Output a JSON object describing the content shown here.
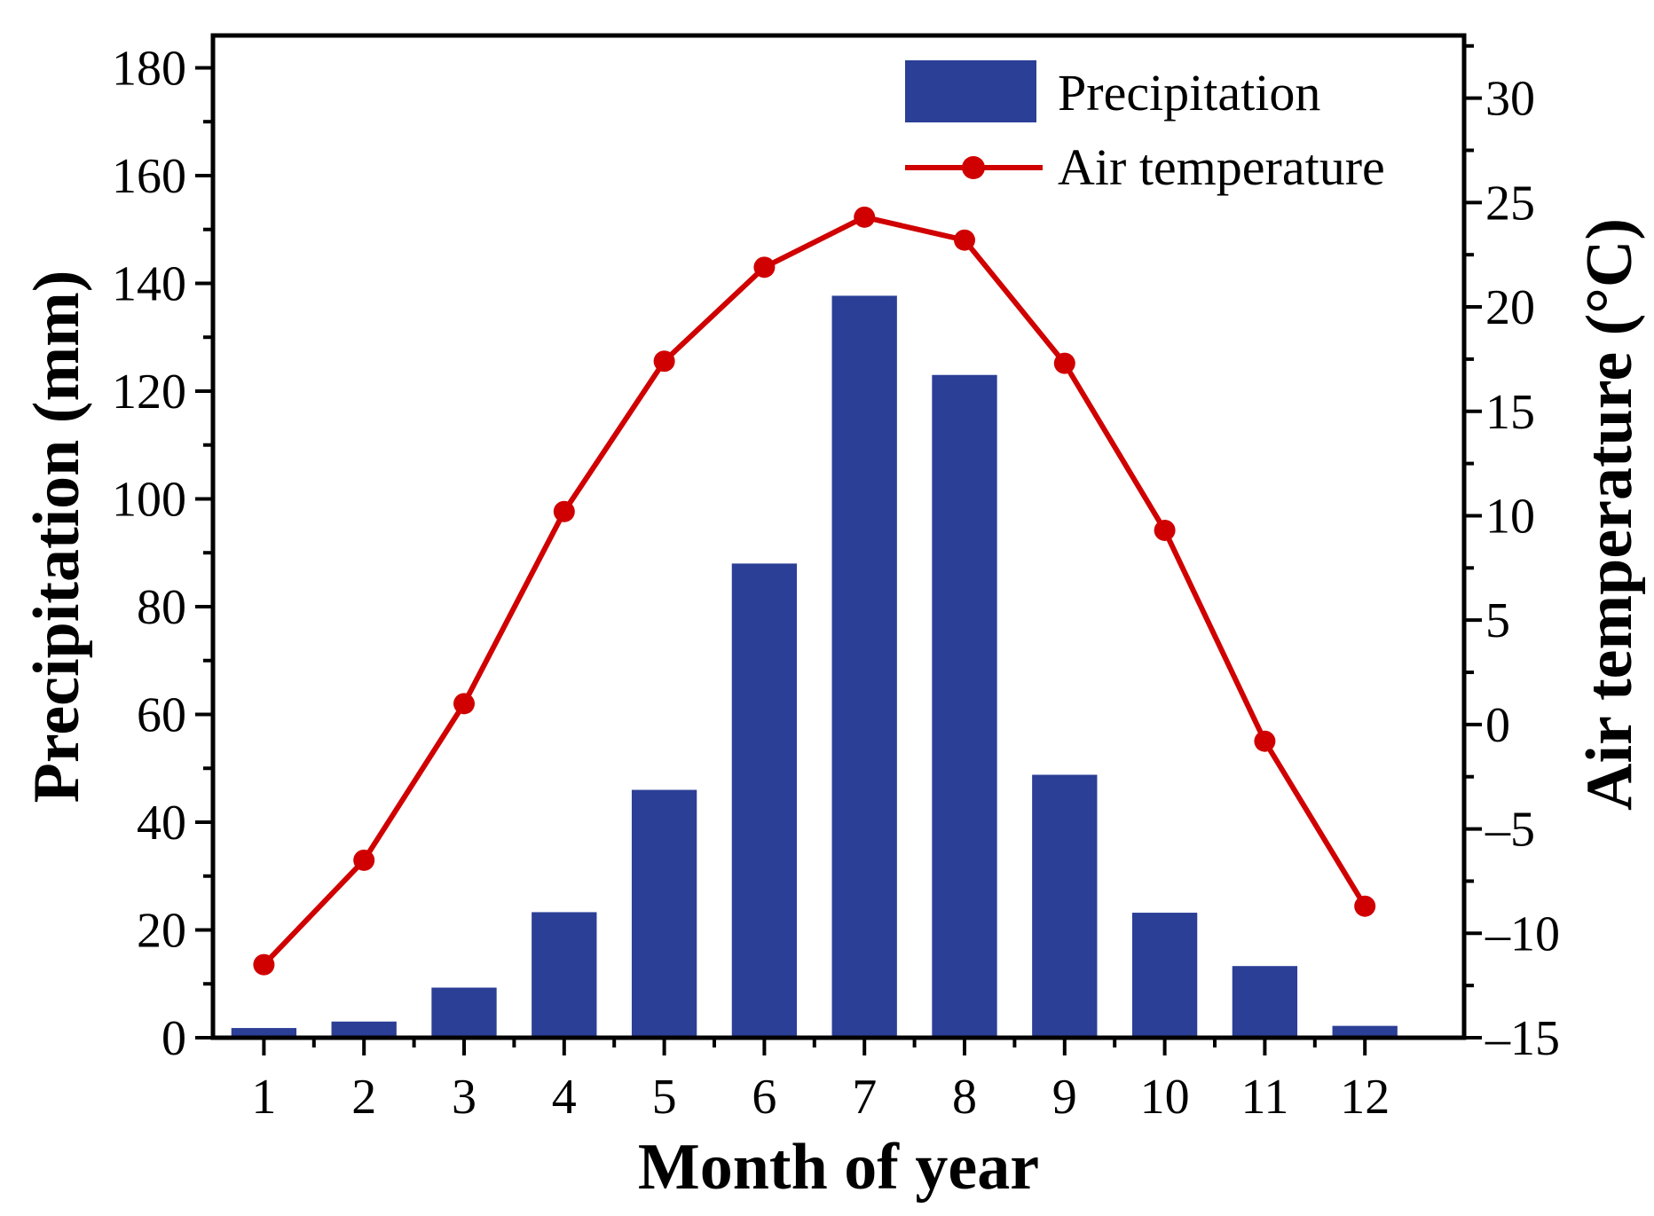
{
  "chart_data": {
    "type": "bar+line",
    "categories": [
      "1",
      "2",
      "3",
      "4",
      "5",
      "6",
      "7",
      "8",
      "9",
      "10",
      "11",
      "12"
    ],
    "xlabel": "Month of year",
    "series": [
      {
        "name": "Precipitation",
        "type": "bar",
        "axis": "left",
        "color": "#2b3f96",
        "values": [
          1.8,
          3.0,
          9.3,
          23.3,
          46.0,
          88.0,
          137.7,
          123.0,
          48.8,
          23.2,
          13.3,
          2.2
        ]
      },
      {
        "name": "Air temperature",
        "type": "line",
        "axis": "right",
        "color": "#d00000",
        "values": [
          -11.5,
          -6.5,
          1.0,
          10.2,
          17.4,
          21.9,
          24.3,
          23.2,
          17.3,
          9.3,
          -0.8,
          -8.7
        ]
      }
    ],
    "left_axis": {
      "label": "Precipitation (mm)",
      "ylim": [
        0,
        186
      ],
      "ticks": [
        0,
        20,
        40,
        60,
        80,
        100,
        120,
        140,
        160,
        180
      ],
      "minor_step": 10
    },
    "right_axis": {
      "label": "Air temperature (°C)",
      "ylim": [
        -15,
        33
      ],
      "ticks": [
        -15,
        -10,
        -5,
        0,
        5,
        10,
        15,
        20,
        25,
        30
      ],
      "tick_labels": [
        "–15",
        "–10",
        "–5",
        "0",
        "5",
        "10",
        "15",
        "20",
        "25",
        "30"
      ],
      "minor_step": 2.5
    },
    "legend": {
      "position": "top-right",
      "entries": [
        "Precipitation",
        "Air temperature"
      ]
    }
  }
}
